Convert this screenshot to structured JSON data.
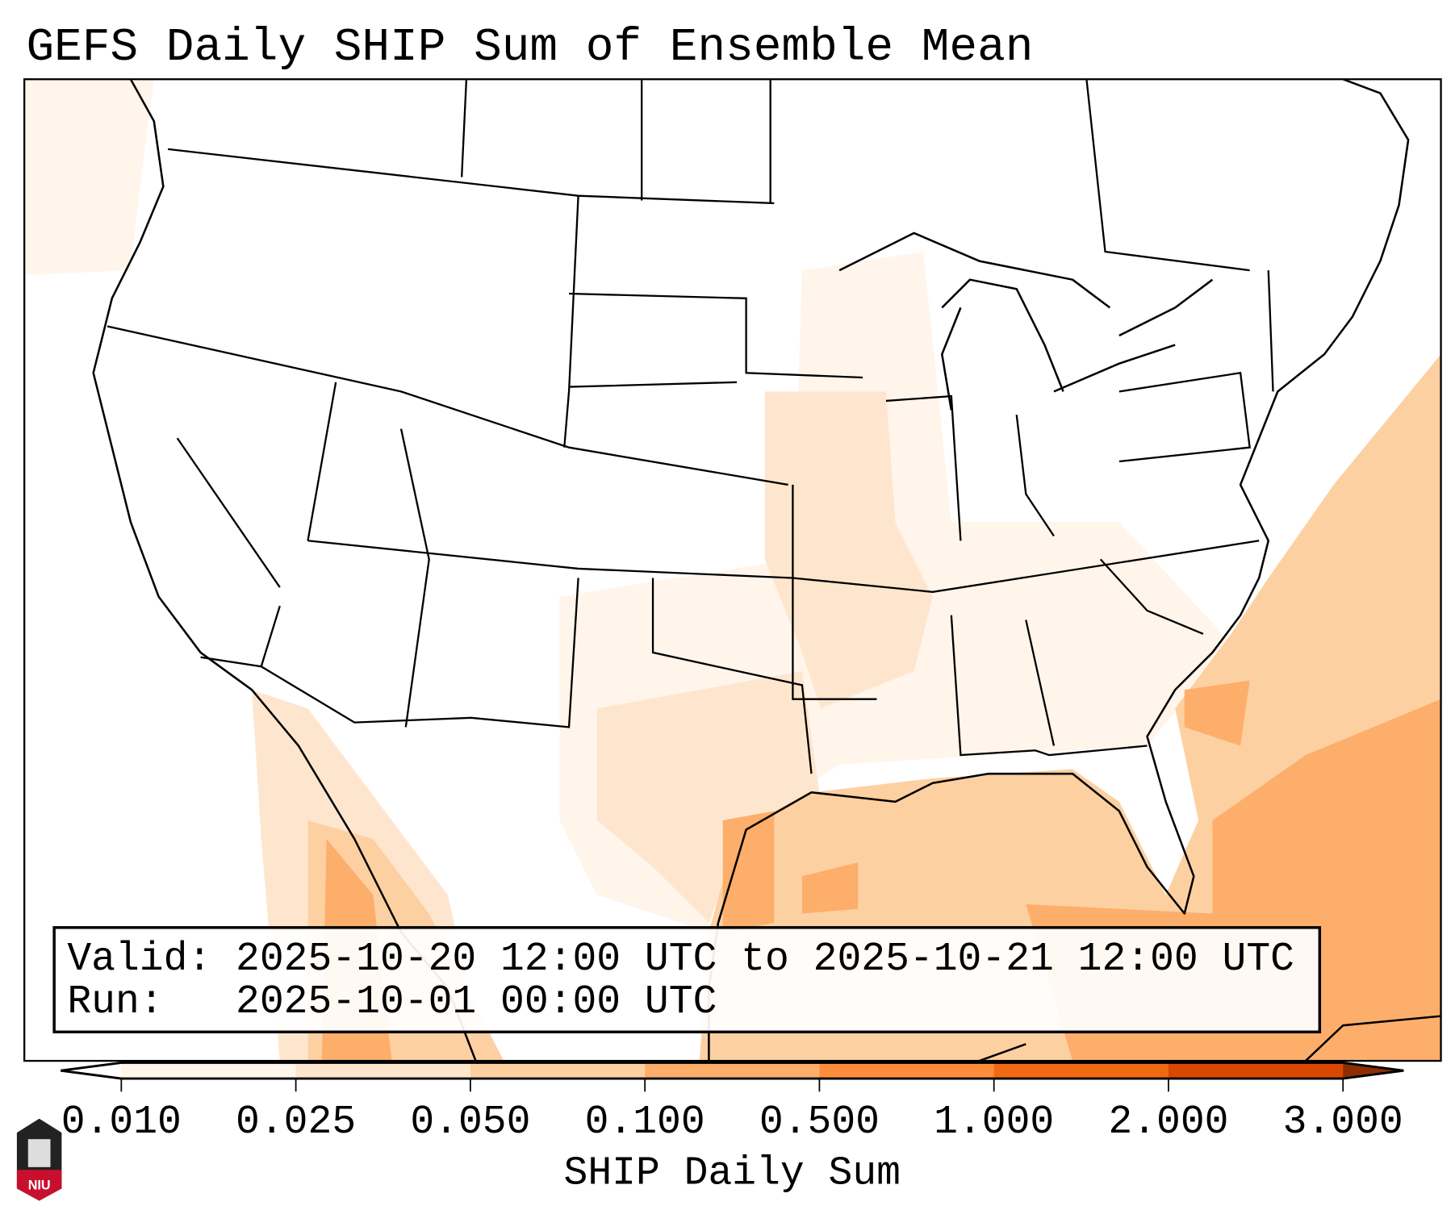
{
  "chart_data": {
    "type": "heatmap",
    "title": "GEFS Daily SHIP Sum of Ensemble Mean",
    "colorbar": {
      "label": "SHIP Daily Sum",
      "ticks": [
        "0.010",
        "0.025",
        "0.050",
        "0.100",
        "0.500",
        "1.000",
        "2.000",
        "3.000"
      ],
      "levels": [
        0.01,
        0.025,
        0.05,
        0.1,
        0.5,
        1.0,
        2.0,
        3.0
      ],
      "colors": [
        "#fff5eb",
        "#fee6ce",
        "#fdd0a2",
        "#fdae6b",
        "#fd8d3c",
        "#f16913",
        "#d94801"
      ],
      "under_color": "#ffffff",
      "over_color": "#8c2d04",
      "extend": "both"
    },
    "info": {
      "valid": "Valid: 2025-10-20 12:00 UTC to 2025-10-21 12:00 UTC",
      "run": "Run:   2025-10-01 00:00 UTC"
    },
    "region": "CONUS",
    "summary": "Highest values (0.100-0.500) over SE Atlantic, Gulf of Mexico and west Mexico; 0.05-0.1 over Gulf coast; trace values over central US"
  },
  "logo": {
    "text": "NIU"
  }
}
